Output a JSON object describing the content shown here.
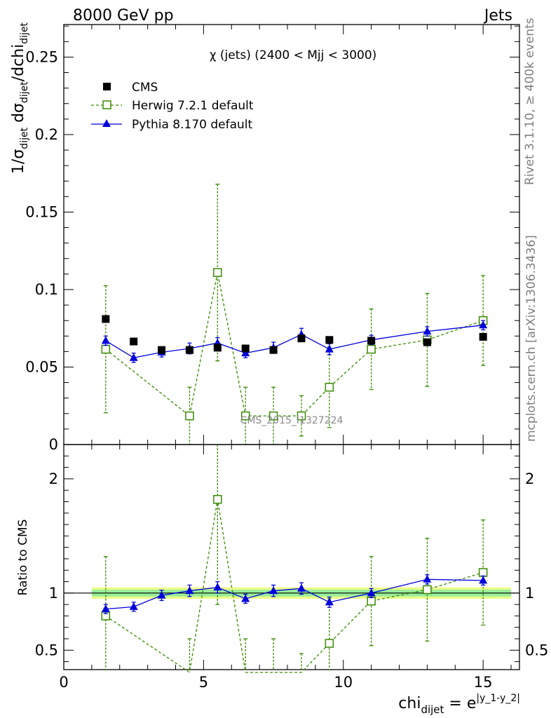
{
  "header": {
    "left": "8000 GeV pp",
    "right": "Jets"
  },
  "side": {
    "rivet": "Rivet 3.1.10, ≥ 400k events",
    "mcplots": "mcplots.cern.ch [arXiv:1306.3436]"
  },
  "watermark": "CMS_2015_I1327224",
  "chart_data": [
    {
      "type": "scatter",
      "title": "χ (jets) (2400 < Mjj < 3000)",
      "ylabel": "1/σ_dijet dσ_dijet/dchi_dijet",
      "xlim": [
        0,
        16.3
      ],
      "ylim": [
        0,
        0.271
      ],
      "yticks": [
        "0",
        "0.05",
        "0.1",
        "0.15",
        "0.2",
        "0.25"
      ],
      "ytick_values": [
        0,
        0.05,
        0.1,
        0.15,
        0.2,
        0.25
      ],
      "series": [
        {
          "name": "CMS",
          "color": "#000000",
          "marker": "square",
          "x": [
            1.5,
            2.5,
            3.5,
            4.5,
            5.5,
            6.5,
            7.5,
            8.5,
            9.5,
            11,
            13,
            15
          ],
          "y": [
            0.081,
            0.0665,
            0.061,
            0.061,
            0.0625,
            0.062,
            0.061,
            0.0685,
            0.0675,
            0.067,
            0.066,
            0.0695
          ]
        },
        {
          "name": "Herwig 7.2.1 default",
          "color": "#3a8a00",
          "marker": "open-square",
          "x": [
            1.5,
            4.5,
            5.5,
            6.5,
            7.5,
            8.5,
            9.5,
            11,
            13,
            15
          ],
          "y": [
            0.0615,
            0.0185,
            0.111,
            0.0185,
            0.0185,
            0.0185,
            0.037,
            0.0615,
            0.0675,
            0.08
          ],
          "err": [
            0.041,
            0.0185,
            0.057,
            0.0185,
            0.0185,
            0.013,
            0.026,
            0.026,
            0.03,
            0.029
          ]
        },
        {
          "name": "Pythia 8.170 default",
          "color": "#0000dd",
          "marker": "triangle",
          "x": [
            1.5,
            2.5,
            3.5,
            4.5,
            5.5,
            6.5,
            7.5,
            8.5,
            9.5,
            11,
            13,
            15
          ],
          "y": [
            0.067,
            0.056,
            0.0595,
            0.062,
            0.0655,
            0.059,
            0.0625,
            0.071,
            0.0615,
            0.0675,
            0.073,
            0.077
          ],
          "err": [
            0.003,
            0.003,
            0.003,
            0.0035,
            0.0035,
            0.003,
            0.0035,
            0.004,
            0.0035,
            0.003,
            0.003,
            0.003
          ]
        }
      ]
    },
    {
      "type": "line",
      "ylabel": "Ratio to CMS",
      "xlabel": "chi_dijet = e^|y_1-y_2|",
      "xlim": [
        0,
        16.3
      ],
      "ylim": [
        0.33,
        2.3
      ],
      "xticks": [
        "0",
        "5",
        "10",
        "15"
      ],
      "xtick_values": [
        0,
        5,
        10,
        15
      ],
      "yticks": [
        "0.5",
        "1",
        "2"
      ],
      "ytick_values": [
        0.5,
        1,
        2
      ],
      "band": {
        "x": [
          1,
          16
        ],
        "inner": [
          0.97,
          1.03
        ],
        "outer": [
          0.95,
          1.05
        ],
        "inner_color": "#99ee99",
        "outer_color": "#eeff88"
      },
      "series": [
        {
          "name": "Herwig 7.2.1 default",
          "color": "#3a8a00",
          "x": [
            1.5,
            4.5,
            5.5,
            6.5,
            7.5,
            8.5,
            9.5,
            11,
            13,
            15
          ],
          "y": [
            0.8,
            0.3,
            1.82,
            0.3,
            0.3,
            0.27,
            0.56,
            0.93,
            1.03,
            1.18
          ],
          "err": [
            0.52,
            0.3,
            0.92,
            0.3,
            0.3,
            0.2,
            0.39,
            0.39,
            0.45,
            0.46
          ]
        },
        {
          "name": "Pythia 8.170 default",
          "color": "#0000dd",
          "x": [
            1.5,
            2.5,
            3.5,
            4.5,
            5.5,
            6.5,
            7.5,
            8.5,
            9.5,
            11,
            13,
            15
          ],
          "y": [
            0.86,
            0.88,
            0.98,
            1.02,
            1.05,
            0.95,
            1.02,
            1.04,
            0.92,
            1.0,
            1.12,
            1.11
          ],
          "err": [
            0.04,
            0.04,
            0.045,
            0.05,
            0.05,
            0.04,
            0.05,
            0.05,
            0.045,
            0.04,
            0.04,
            0.04
          ]
        }
      ]
    }
  ]
}
